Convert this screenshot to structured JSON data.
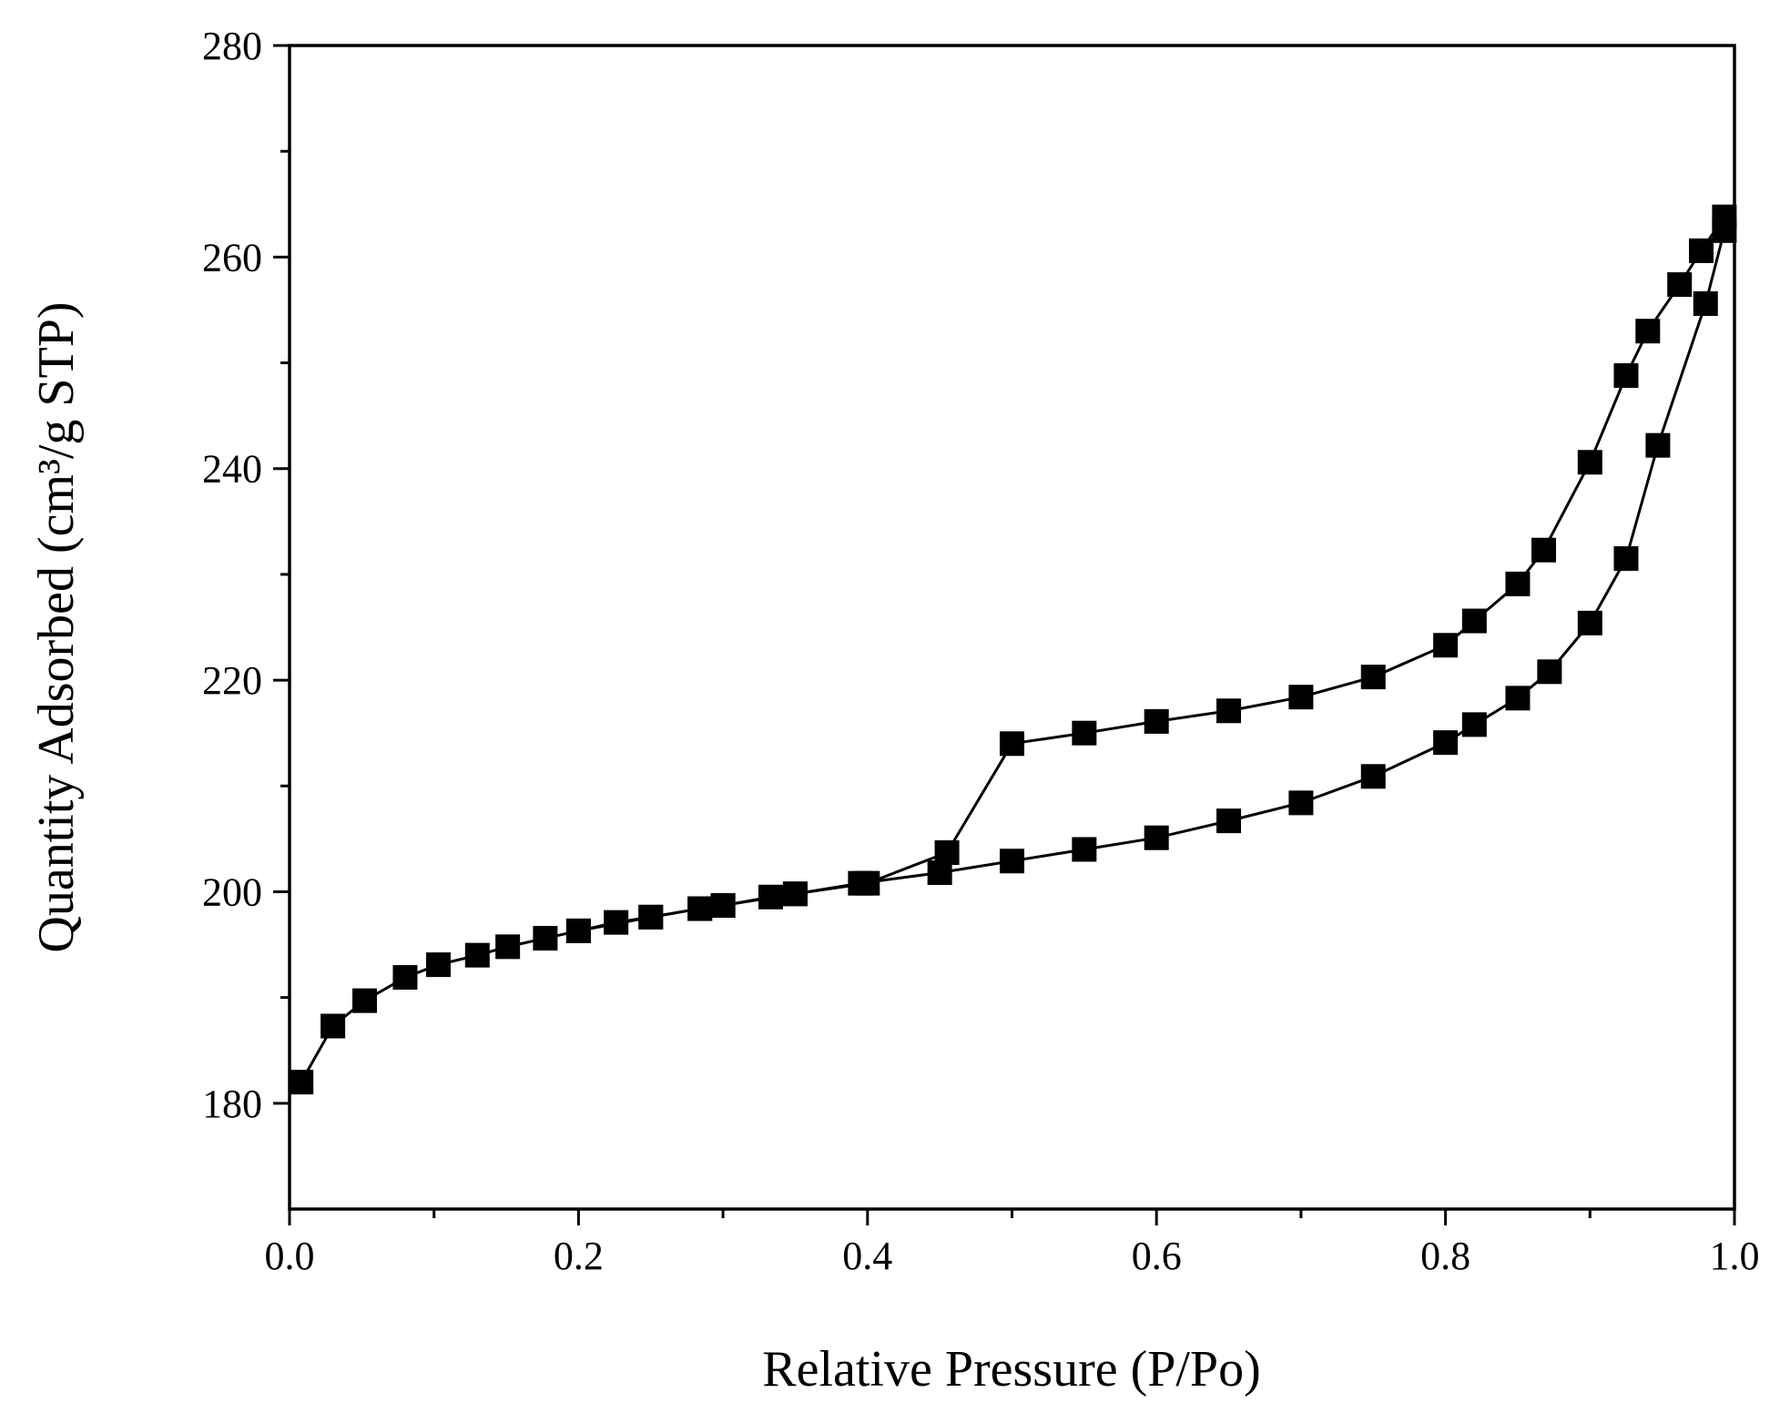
{
  "chart_data": {
    "type": "scatter",
    "xlabel": "Relative Pressure (P/Po)",
    "ylabel": "Quantity Adsorbed (cm³/g STP)",
    "xlim": [
      0.0,
      1.0
    ],
    "ylim": [
      170,
      280
    ],
    "x_ticks": [
      "0.0",
      "0.2",
      "0.4",
      "0.6",
      "0.8",
      "1.0"
    ],
    "x_tick_values": [
      0.0,
      0.2,
      0.4,
      0.6,
      0.8,
      1.0
    ],
    "y_ticks": [
      "180",
      "200",
      "220",
      "240",
      "260",
      "280"
    ],
    "y_tick_values": [
      180,
      200,
      220,
      240,
      260,
      280
    ],
    "grid": false,
    "legend": "none",
    "marker": "square",
    "color": "#000000",
    "series": [
      {
        "x": [
          0.008,
          0.03,
          0.052,
          0.08,
          0.103,
          0.13,
          0.151,
          0.177,
          0.2,
          0.226,
          0.25,
          0.284,
          0.3,
          0.333,
          0.35,
          0.395,
          0.45,
          0.5,
          0.55,
          0.6,
          0.65,
          0.7,
          0.75,
          0.8,
          0.82,
          0.85,
          0.872,
          0.9,
          0.925,
          0.947,
          0.98,
          0.993
        ],
        "y": [
          182.0,
          187.3,
          189.7,
          191.9,
          193.1,
          194.0,
          194.8,
          195.6,
          196.3,
          197.1,
          197.6,
          198.4,
          198.7,
          199.5,
          199.8,
          200.8,
          201.8,
          202.9,
          204.0,
          205.1,
          206.7,
          208.4,
          210.9,
          214.1,
          215.8,
          218.3,
          220.8,
          225.4,
          231.5,
          242.2,
          255.6,
          262.5
        ]
      },
      {
        "x": [
          0.993,
          0.977,
          0.962,
          0.94,
          0.925,
          0.9,
          0.868,
          0.85,
          0.82,
          0.8,
          0.75,
          0.7,
          0.65,
          0.6,
          0.55,
          0.5,
          0.455,
          0.4,
          0.35,
          0.3,
          0.284,
          0.25,
          0.2
        ],
        "y": [
          263.8,
          260.6,
          257.4,
          253.0,
          248.8,
          240.6,
          232.3,
          229.1,
          225.6,
          223.3,
          220.3,
          218.4,
          217.1,
          216.1,
          215.0,
          214.0,
          203.7,
          200.8,
          199.8,
          198.7,
          198.4,
          197.6,
          196.3
        ]
      }
    ]
  }
}
